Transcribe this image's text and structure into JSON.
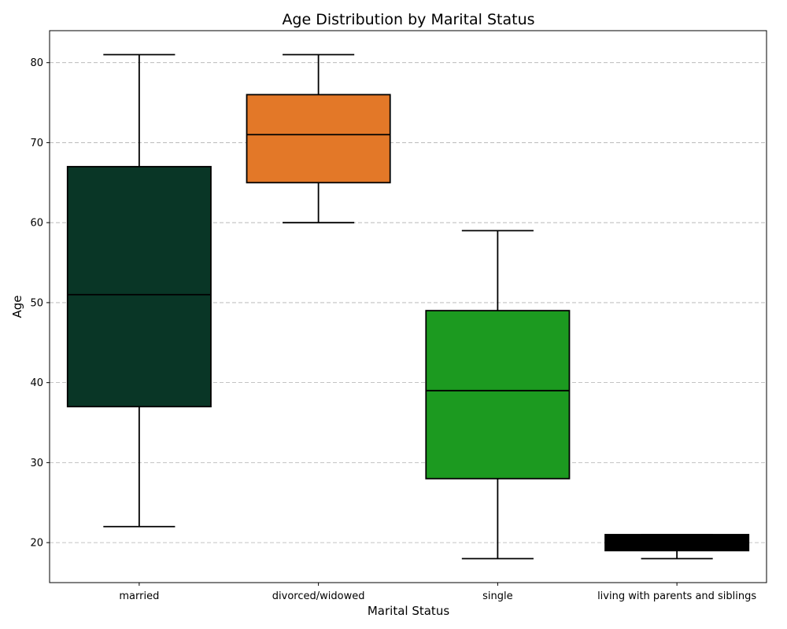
{
  "chart_data": {
    "type": "box",
    "title": "Age Distribution by Marital Status",
    "xlabel": "Marital Status",
    "ylabel": "Age",
    "ylim": [
      15,
      84
    ],
    "yticks": [
      20,
      30,
      40,
      50,
      60,
      70,
      80
    ],
    "grid": "y",
    "legend": "none",
    "categories": [
      "married",
      "divorced/widowed",
      "single",
      "living with parents and siblings"
    ],
    "boxes": [
      {
        "category": "married",
        "min": 22,
        "q1": 37,
        "median": 51,
        "q3": 67,
        "max": 81,
        "color": "#093626"
      },
      {
        "category": "divorced/widowed",
        "min": 60,
        "q1": 65,
        "median": 71,
        "q3": 76,
        "max": 81,
        "color": "#e37828"
      },
      {
        "category": "single",
        "min": 18,
        "q1": 28,
        "median": 39,
        "q3": 49,
        "max": 59,
        "color": "#1c9a20"
      },
      {
        "category": "living with parents and siblings",
        "min": 18,
        "q1": 19,
        "median": 20,
        "q3": 21,
        "max": 21,
        "color": "#000000"
      }
    ]
  }
}
